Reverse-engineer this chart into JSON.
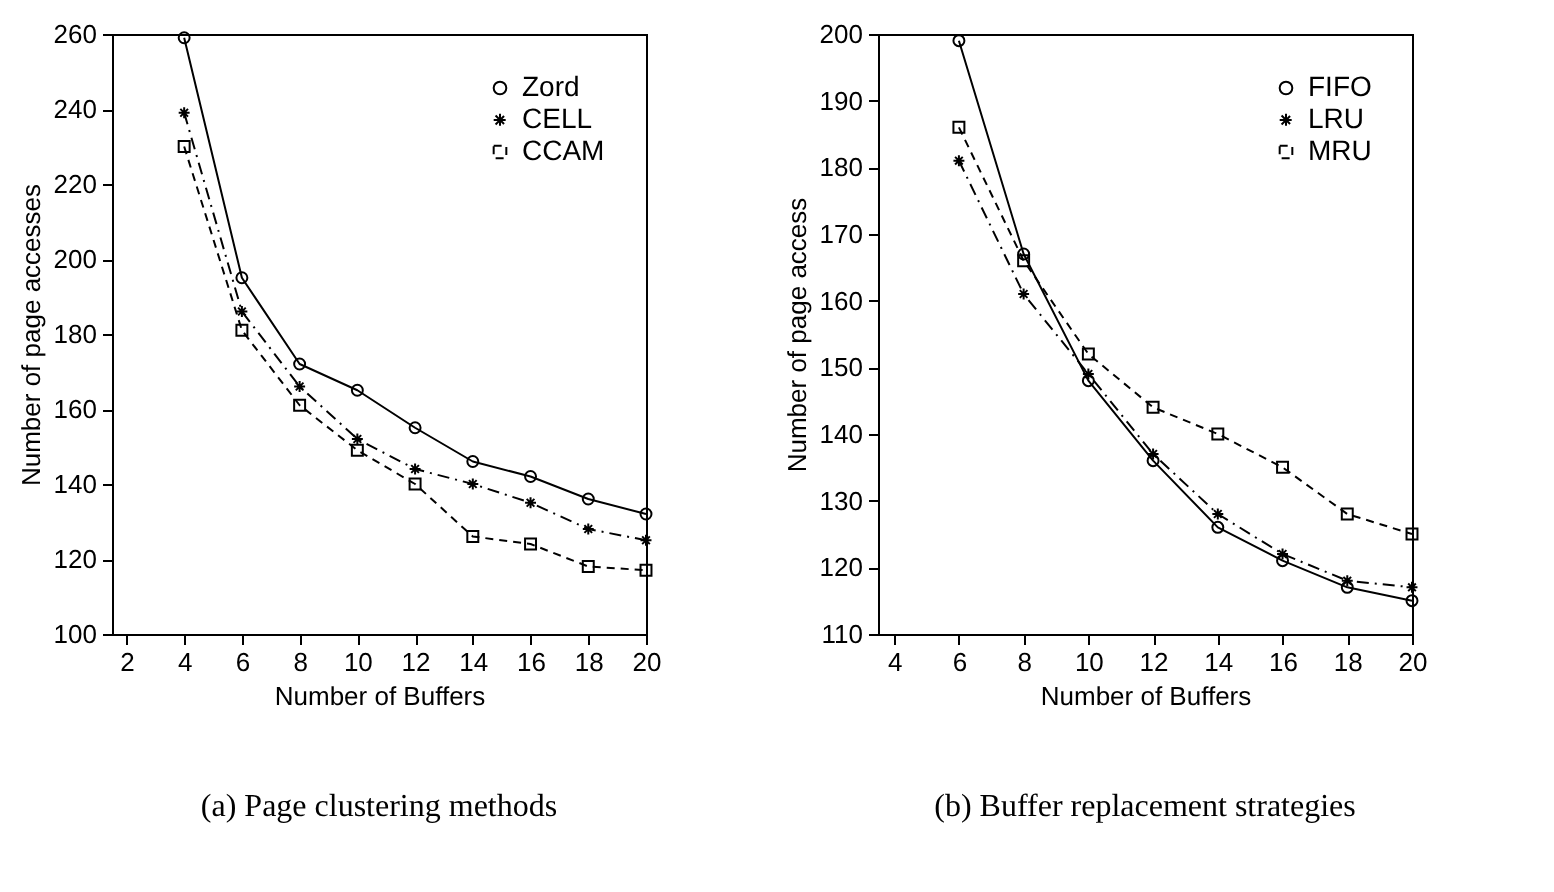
{
  "chart_data": [
    {
      "type": "line",
      "title": "(a) Page clustering methods",
      "xlabel": "Number of Buffers",
      "ylabel": "Number of page accesses",
      "x": [
        4,
        6,
        8,
        10,
        12,
        14,
        16,
        18,
        20
      ],
      "xlim": [
        1.5,
        20
      ],
      "xticks": [
        2,
        4,
        6,
        8,
        10,
        12,
        14,
        16,
        18,
        20
      ],
      "ylim": [
        100,
        260
      ],
      "yticks": [
        100,
        120,
        140,
        160,
        180,
        200,
        220,
        240,
        260
      ],
      "grid": false,
      "legend": "top right",
      "series": [
        {
          "name": "Zord",
          "color": "#000000",
          "marker": "circle",
          "line_style": "solid",
          "values": [
            259,
            195,
            172,
            165,
            155,
            146,
            142,
            136,
            132
          ]
        },
        {
          "name": "CELL",
          "color": "#000000",
          "marker": "cross",
          "line_style": "dashdot",
          "values": [
            239,
            186,
            166,
            152,
            144,
            140,
            135,
            128,
            125
          ]
        },
        {
          "name": "CCAM",
          "color": "#000000",
          "marker": "square",
          "line_style": "dashed",
          "values": [
            230,
            181,
            161,
            149,
            140,
            126,
            124,
            118,
            117
          ]
        }
      ]
    },
    {
      "type": "line",
      "title": "(b) Buffer replacement strategies",
      "xlabel": "Number of Buffers",
      "ylabel": "Number of page access",
      "x": [
        6,
        8,
        10,
        12,
        14,
        16,
        18,
        20
      ],
      "xlim": [
        3.5,
        20
      ],
      "xticks": [
        4,
        6,
        8,
        10,
        12,
        14,
        16,
        18,
        20
      ],
      "ylim": [
        110,
        200
      ],
      "yticks": [
        110,
        120,
        130,
        140,
        150,
        160,
        170,
        180,
        190,
        200
      ],
      "grid": false,
      "legend": "top right",
      "series": [
        {
          "name": "FIFO",
          "color": "#000000",
          "marker": "circle",
          "line_style": "solid",
          "values": [
            199,
            167,
            148,
            136,
            126,
            121,
            117,
            115
          ]
        },
        {
          "name": "LRU",
          "color": "#000000",
          "marker": "cross",
          "line_style": "dashdot",
          "values": [
            181,
            161,
            149,
            137,
            128,
            122,
            118,
            117
          ]
        },
        {
          "name": "MRU",
          "color": "#000000",
          "marker": "square",
          "line_style": "dashed",
          "values": [
            186,
            166,
            152,
            144,
            140,
            135,
            128,
            125
          ]
        }
      ]
    }
  ]
}
